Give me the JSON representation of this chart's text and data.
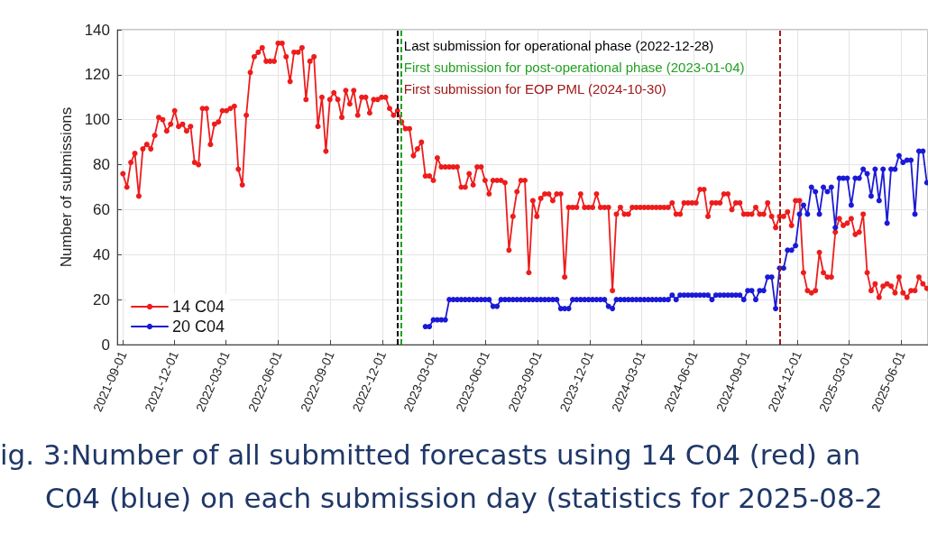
{
  "chart_data": {
    "type": "line",
    "ylabel": "Number of submissions",
    "x": [
      "2021-09-01",
      "2021-09-08",
      "2021-09-15",
      "2021-09-22",
      "2021-09-29",
      "2021-10-06",
      "2021-10-13",
      "2021-10-20",
      "2021-10-27",
      "2021-11-03",
      "2021-11-10",
      "2021-11-17",
      "2021-11-24",
      "2021-12-01",
      "2021-12-08",
      "2021-12-15",
      "2021-12-22",
      "2021-12-29",
      "2022-01-05",
      "2022-01-12",
      "2022-01-19",
      "2022-01-26",
      "2022-02-02",
      "2022-02-09",
      "2022-02-16",
      "2022-02-23",
      "2022-03-02",
      "2022-03-09",
      "2022-03-16",
      "2022-03-23",
      "2022-03-30",
      "2022-04-06",
      "2022-04-13",
      "2022-04-20",
      "2022-04-27",
      "2022-05-04",
      "2022-05-11",
      "2022-05-18",
      "2022-05-25",
      "2022-06-01",
      "2022-06-08",
      "2022-06-15",
      "2022-06-22",
      "2022-06-29",
      "2022-07-06",
      "2022-07-13",
      "2022-07-20",
      "2022-07-27",
      "2022-08-03",
      "2022-08-10",
      "2022-08-17",
      "2022-08-24",
      "2022-08-31",
      "2022-09-07",
      "2022-09-14",
      "2022-09-21",
      "2022-09-28",
      "2022-10-05",
      "2022-10-12",
      "2022-10-19",
      "2022-10-26",
      "2022-11-02",
      "2022-11-09",
      "2022-11-16",
      "2022-11-23",
      "2022-11-30",
      "2022-12-07",
      "2022-12-14",
      "2022-12-21",
      "2022-12-28",
      "2023-01-04",
      "2023-01-11",
      "2023-01-18",
      "2023-01-25",
      "2023-02-01",
      "2023-02-08",
      "2023-02-15",
      "2023-02-22",
      "2023-03-01",
      "2023-03-08",
      "2023-03-15",
      "2023-03-22",
      "2023-03-29",
      "2023-04-05",
      "2023-04-12",
      "2023-04-19",
      "2023-04-26",
      "2023-05-03",
      "2023-05-10",
      "2023-05-17",
      "2023-05-24",
      "2023-05-31",
      "2023-06-07",
      "2023-06-14",
      "2023-06-21",
      "2023-06-28",
      "2023-07-05",
      "2023-07-12",
      "2023-07-19",
      "2023-07-26",
      "2023-08-02",
      "2023-08-09",
      "2023-08-16",
      "2023-08-23",
      "2023-08-30",
      "2023-09-06",
      "2023-09-13",
      "2023-09-20",
      "2023-09-27",
      "2023-10-04",
      "2023-10-11",
      "2023-10-18",
      "2023-10-25",
      "2023-11-01",
      "2023-11-08",
      "2023-11-15",
      "2023-11-22",
      "2023-11-29",
      "2023-12-06",
      "2023-12-13",
      "2023-12-20",
      "2023-12-27",
      "2024-01-03",
      "2024-01-10",
      "2024-01-17",
      "2024-01-24",
      "2024-01-31",
      "2024-02-07",
      "2024-02-14",
      "2024-02-21",
      "2024-02-28",
      "2024-03-06",
      "2024-03-13",
      "2024-03-20",
      "2024-03-27",
      "2024-04-03",
      "2024-04-10",
      "2024-04-17",
      "2024-04-24",
      "2024-05-01",
      "2024-05-08",
      "2024-05-15",
      "2024-05-22",
      "2024-05-29",
      "2024-06-05",
      "2024-06-12",
      "2024-06-19",
      "2024-06-26",
      "2024-07-03",
      "2024-07-10",
      "2024-07-17",
      "2024-07-24",
      "2024-07-31",
      "2024-08-07",
      "2024-08-14",
      "2024-08-21",
      "2024-08-28",
      "2024-09-04",
      "2024-09-11",
      "2024-09-18",
      "2024-09-25",
      "2024-10-02",
      "2024-10-09",
      "2024-10-16",
      "2024-10-23",
      "2024-10-30",
      "2024-11-06",
      "2024-11-13",
      "2024-11-20",
      "2024-11-27",
      "2024-12-04",
      "2024-12-11",
      "2024-12-18",
      "2024-12-25",
      "2025-01-01",
      "2025-01-08",
      "2025-01-15",
      "2025-01-22",
      "2025-01-29",
      "2025-02-05",
      "2025-02-12",
      "2025-02-19",
      "2025-02-26",
      "2025-03-05",
      "2025-03-12",
      "2025-03-19",
      "2025-03-26",
      "2025-04-02",
      "2025-04-09",
      "2025-04-16",
      "2025-04-23",
      "2025-04-30",
      "2025-05-07",
      "2025-05-14",
      "2025-05-21",
      "2025-05-28",
      "2025-06-04",
      "2025-06-11",
      "2025-06-18",
      "2025-06-25",
      "2025-07-02",
      "2025-07-09",
      "2025-07-16"
    ],
    "series": [
      {
        "name": "14 C04",
        "color": "#ee1c1c",
        "values": [
          76,
          70,
          81,
          85,
          66,
          87,
          89,
          87,
          93,
          101,
          100,
          95,
          98,
          104,
          97,
          98,
          95,
          97,
          81,
          80,
          105,
          105,
          89,
          98,
          99,
          104,
          104,
          105,
          106,
          78,
          71,
          102,
          121,
          128,
          130,
          132,
          126,
          126,
          126,
          134,
          134,
          128,
          117,
          130,
          130,
          132,
          109,
          126,
          128,
          97,
          110,
          86,
          109,
          112,
          109,
          101,
          113,
          107,
          113,
          102,
          110,
          110,
          103,
          109,
          109,
          110,
          110,
          105,
          102,
          104,
          99,
          96,
          96,
          84,
          87,
          90,
          75,
          75,
          73,
          83,
          79,
          79,
          79,
          79,
          79,
          70,
          70,
          76,
          71,
          79,
          79,
          73,
          67,
          73,
          73,
          73,
          72,
          42,
          57,
          68,
          73,
          73,
          32,
          64,
          57,
          65,
          67,
          67,
          64,
          67,
          67,
          30,
          61,
          61,
          61,
          67,
          61,
          61,
          61,
          67,
          61,
          61,
          61,
          24,
          58,
          61,
          58,
          58,
          61,
          61,
          61,
          61,
          61,
          61,
          61,
          61,
          61,
          61,
          63,
          58,
          58,
          63,
          63,
          63,
          63,
          69,
          69,
          57,
          63,
          63,
          63,
          67,
          67,
          60,
          63,
          63,
          58,
          58,
          58,
          61,
          58,
          58,
          63,
          57,
          52,
          57,
          57,
          59,
          53,
          64,
          64,
          32,
          24,
          23,
          24,
          41,
          32,
          30,
          30,
          50,
          56,
          53,
          54,
          56,
          49,
          50,
          58,
          32,
          24,
          27,
          21,
          26,
          27,
          26,
          23,
          30,
          23,
          21,
          24,
          24,
          30,
          27,
          25
        ]
      },
      {
        "name": "20 C04",
        "color": "#1a1ad6",
        "values": [
          null,
          null,
          null,
          null,
          null,
          null,
          null,
          null,
          null,
          null,
          null,
          null,
          null,
          null,
          null,
          null,
          null,
          null,
          null,
          null,
          null,
          null,
          null,
          null,
          null,
          null,
          null,
          null,
          null,
          null,
          null,
          null,
          null,
          null,
          null,
          null,
          null,
          null,
          null,
          null,
          null,
          null,
          null,
          null,
          null,
          null,
          null,
          null,
          null,
          null,
          null,
          null,
          null,
          null,
          null,
          null,
          null,
          null,
          null,
          null,
          null,
          null,
          null,
          null,
          null,
          null,
          null,
          null,
          null,
          null,
          null,
          null,
          null,
          null,
          null,
          null,
          8,
          8,
          11,
          11,
          11,
          11,
          20,
          20,
          20,
          20,
          20,
          20,
          20,
          20,
          20,
          20,
          20,
          17,
          17,
          20,
          20,
          20,
          20,
          20,
          20,
          20,
          20,
          20,
          20,
          20,
          20,
          20,
          20,
          20,
          16,
          16,
          16,
          20,
          20,
          20,
          20,
          20,
          20,
          20,
          20,
          20,
          17,
          16,
          20,
          20,
          20,
          20,
          20,
          20,
          20,
          20,
          20,
          20,
          20,
          20,
          20,
          20,
          22,
          20,
          22,
          22,
          22,
          22,
          22,
          22,
          22,
          22,
          20,
          22,
          22,
          22,
          22,
          22,
          22,
          22,
          20,
          24,
          24,
          20,
          24,
          24,
          30,
          30,
          16,
          34,
          34,
          42,
          42,
          44,
          58,
          62,
          58,
          70,
          68,
          58,
          70,
          68,
          70,
          52,
          74,
          74,
          74,
          62,
          74,
          74,
          78,
          76,
          66,
          78,
          64,
          78,
          54,
          78,
          78,
          84,
          81,
          82,
          82,
          58,
          86,
          86,
          72
        ]
      }
    ],
    "xlim": [
      "2021-08-22",
      "2025-07-18"
    ],
    "xticks": [
      "2021-09-01",
      "2021-12-01",
      "2022-03-01",
      "2022-06-01",
      "2022-09-01",
      "2022-12-01",
      "2023-03-01",
      "2023-06-01",
      "2023-09-01",
      "2023-12-01",
      "2024-03-01",
      "2024-06-01",
      "2024-09-01",
      "2024-12-01",
      "2025-03-01",
      "2025-06-01"
    ],
    "ylim": [
      0,
      140
    ],
    "yticks": [
      0,
      20,
      40,
      60,
      80,
      100,
      120,
      140
    ],
    "grid": true,
    "legend": "bottom left",
    "marker": "circle",
    "ref_lines": [
      {
        "axis": "x",
        "value": "2022-12-28",
        "label": "Last submission for operational phase (2022-12-28)",
        "color": "#000000",
        "line_style": "dashed"
      },
      {
        "axis": "x",
        "value": "2023-01-04",
        "label": "First submission for post-operational phase (2023-01-04)",
        "color": "#22a022",
        "line_style": "dashed"
      },
      {
        "axis": "x",
        "value": "2024-10-30",
        "label": "First submission for EOP PML (2024-10-30)",
        "color": "#a01818",
        "line_style": "dashed"
      }
    ],
    "annotations": [
      "ig. 3:Number of all submitted forecasts using 14 C04 (red) an",
      "C04 (blue) on each submission day (statistics for 2025-08-2"
    ]
  }
}
